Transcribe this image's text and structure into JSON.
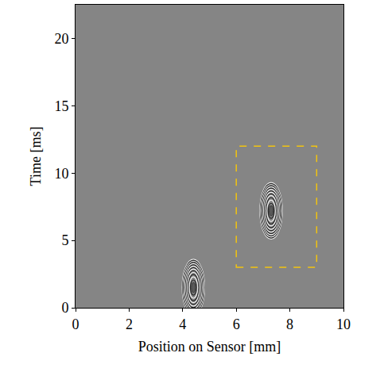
{
  "chart_data": {
    "type": "image",
    "x_label": "Position on Sensor [mm]",
    "y_label": "Time [ms]",
    "xlim": [
      0,
      10
    ],
    "xticks": [
      0,
      2,
      4,
      6,
      8,
      10
    ],
    "ylim": [
      0,
      22.5
    ],
    "yticks": [
      0,
      5,
      10,
      15,
      20
    ],
    "points": {
      "x": [
        4.4,
        7.3
      ],
      "y": [
        1.5,
        7.2
      ]
    },
    "region": {
      "xlim": [
        6,
        9
      ],
      "ylim": [
        3,
        12
      ],
      "color": "#f2c40f",
      "line_style": "dash"
    },
    "grid": false
  }
}
